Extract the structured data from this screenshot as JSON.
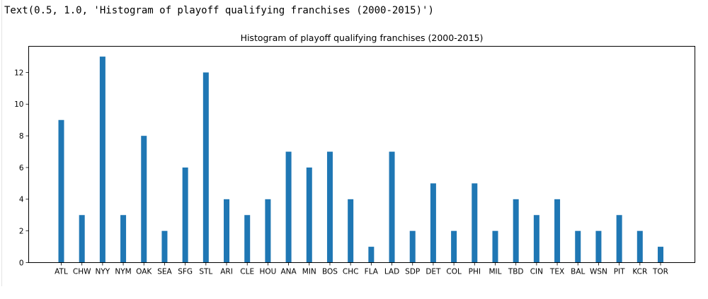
{
  "output_text": "Text(0.5, 1.0, 'Histogram of playoff qualifying franchises (2000-2015)')",
  "chart_data": {
    "type": "bar",
    "title": "Histogram of playoff qualifying franchises (2000-2015)",
    "xlabel": "",
    "ylabel": "",
    "categories": [
      "ATL",
      "CHW",
      "NYY",
      "NYM",
      "OAK",
      "SEA",
      "SFG",
      "STL",
      "ARI",
      "CLE",
      "HOU",
      "ANA",
      "MIN",
      "BOS",
      "CHC",
      "FLA",
      "LAD",
      "SDP",
      "DET",
      "COL",
      "PHI",
      "MIL",
      "TBD",
      "CIN",
      "TEX",
      "BAL",
      "WSN",
      "PIT",
      "KCR",
      "TOR"
    ],
    "values": [
      9,
      3,
      13,
      3,
      8,
      2,
      6,
      12,
      4,
      3,
      4,
      7,
      6,
      7,
      4,
      1,
      7,
      2,
      5,
      2,
      5,
      2,
      4,
      3,
      4,
      2,
      2,
      3,
      2,
      1
    ],
    "ylim": [
      0,
      13.65
    ],
    "yticks": [
      0,
      2,
      4,
      6,
      8,
      10,
      12
    ],
    "bar_color": "#1f77b4",
    "grid": false,
    "legend": "none"
  }
}
